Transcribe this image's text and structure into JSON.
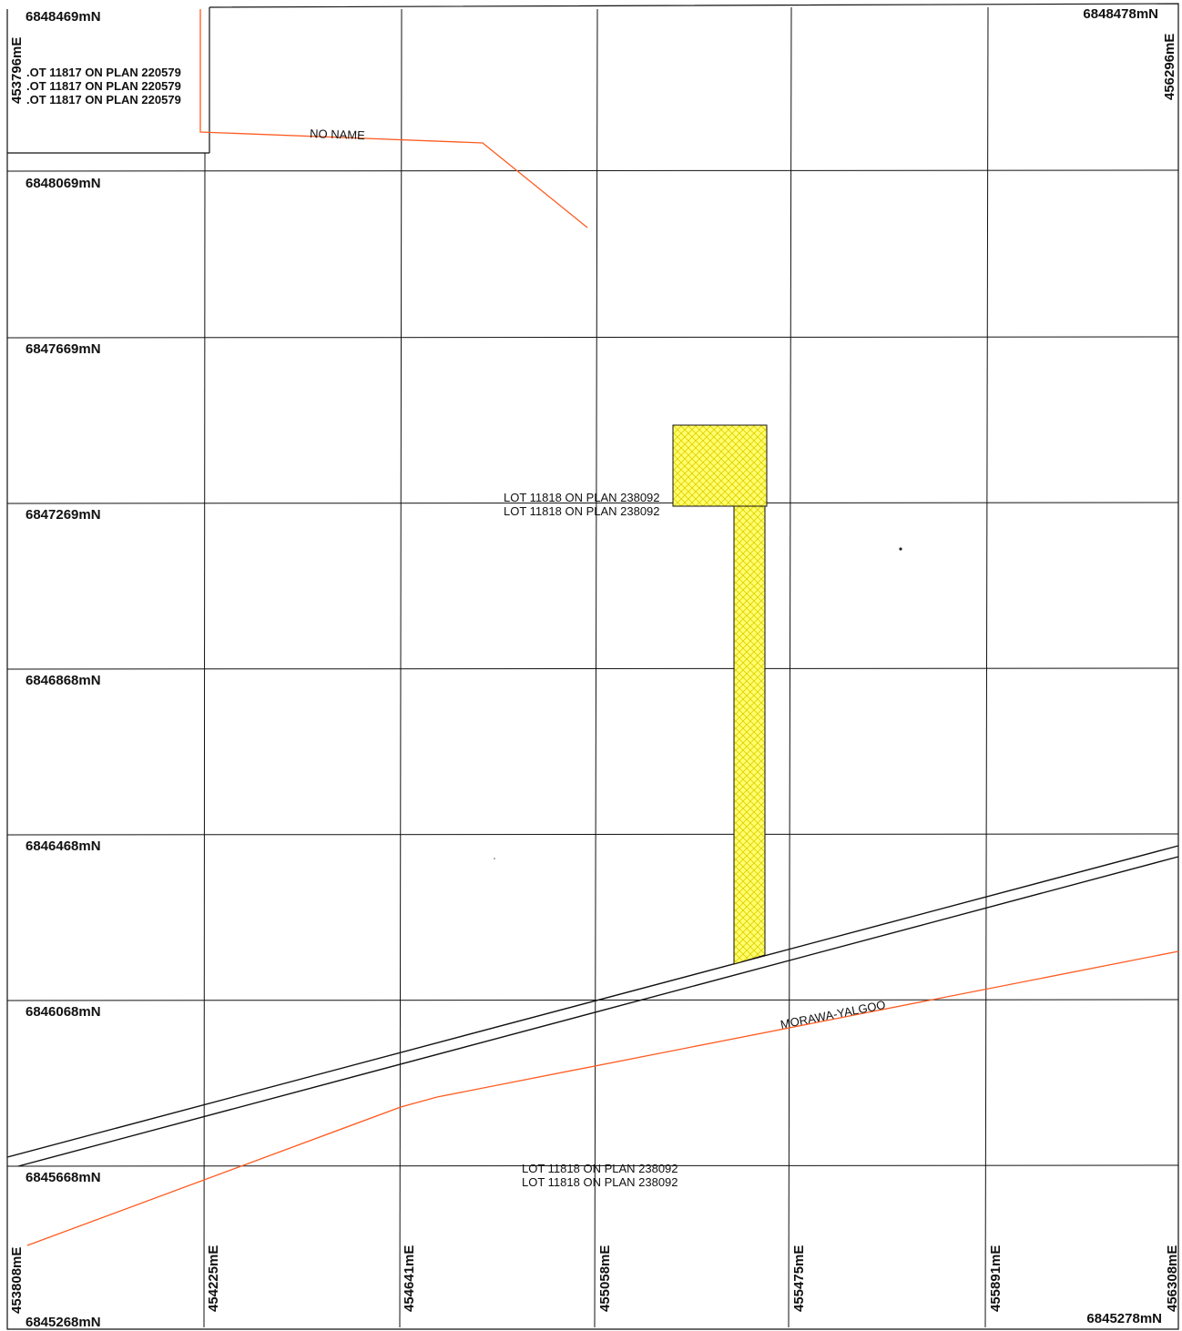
{
  "northings": {
    "n1": "6848469mN",
    "n1_right": "6848478mN",
    "n2": "6848069mN",
    "n3": "6847669mN",
    "n4": "6847269mN",
    "n5": "6846868mN",
    "n6": "6846468mN",
    "n7": "6846068mN",
    "n8": "6845668mN",
    "n9": "6845268mN",
    "n9_right": "6845278mN"
  },
  "eastings": {
    "top_left": "453796mE",
    "top_right": "456296mE",
    "e1": "453808mE",
    "e2": "454225mE",
    "e3": "454641mE",
    "e4": "455058mE",
    "e5": "455475mE",
    "e6": "455891mE",
    "e7": "456308mE"
  },
  "lots": {
    "lot_11817_a": ".OT 11817 ON PLAN 220579",
    "lot_11817_b": ".OT 11817 ON PLAN 220579",
    "lot_11817_c": ".OT 11817 ON PLAN 220579",
    "lot_11818_mid_a": "LOT 11818 ON PLAN 238092",
    "lot_11818_mid_b": "LOT 11818 ON PLAN 238092",
    "lot_11818_bot_a": "LOT 11818 ON PLAN 238092",
    "lot_11818_bot_b": "LOT 11818 ON PLAN 238092"
  },
  "roads": {
    "no_name": "NO NAME",
    "morawa_yalgoo": "MORAWA-YALGOO"
  },
  "colors": {
    "road_line": "#ff5a1f",
    "tenement_fill": "#ffff66",
    "tenement_hatch": "#e6d400",
    "grid": "#111111"
  }
}
